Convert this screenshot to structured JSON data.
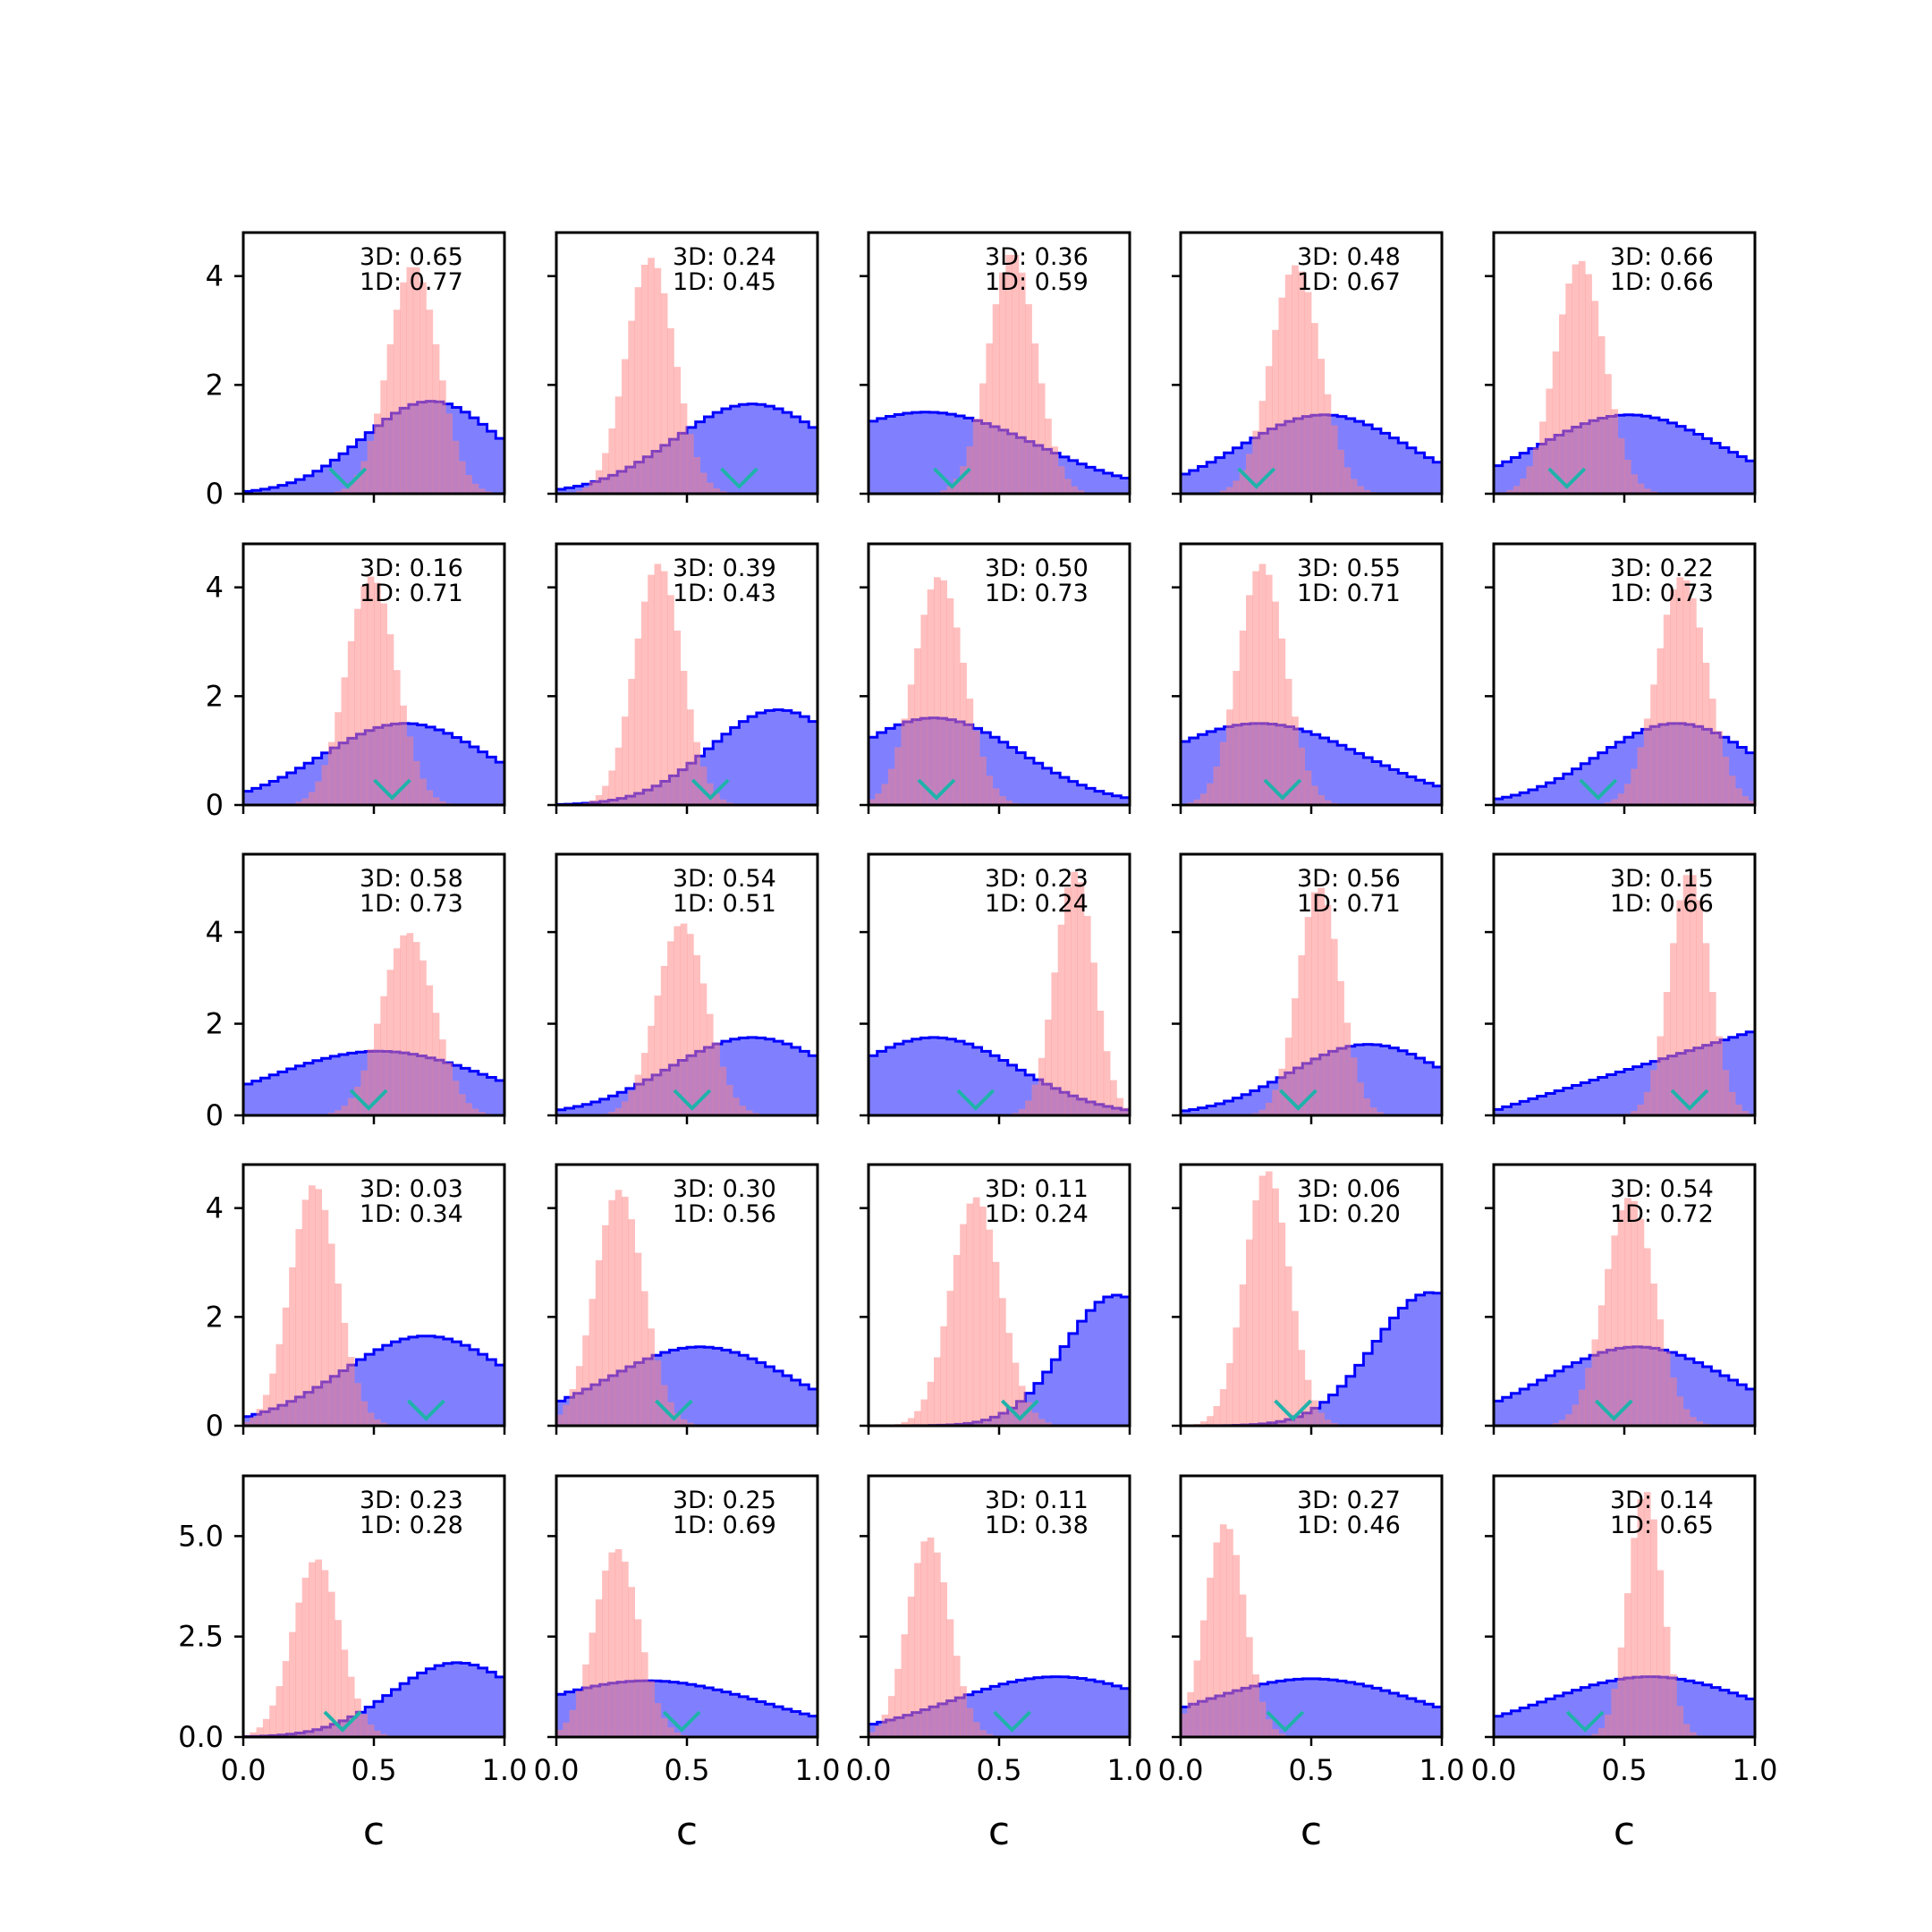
{
  "chart_data": {
    "type": "histogram-grid",
    "rows": 5,
    "cols": 5,
    "xlim": [
      0,
      1
    ],
    "x_ticks": [
      "0.0",
      "0.5",
      "1.0"
    ],
    "xlabel": "c",
    "row_ylim": [
      [
        0,
        4.8
      ],
      [
        0,
        4.8
      ],
      [
        0,
        5.7
      ],
      [
        0,
        4.8
      ],
      [
        0,
        6.5
      ]
    ],
    "row_y_ticks": [
      [
        {
          "v": 0,
          "label": "0"
        },
        {
          "v": 2,
          "label": "2"
        },
        {
          "v": 4,
          "label": "4"
        }
      ],
      [
        {
          "v": 0,
          "label": "0"
        },
        {
          "v": 2,
          "label": "2"
        },
        {
          "v": 4,
          "label": "4"
        }
      ],
      [
        {
          "v": 0,
          "label": "0"
        },
        {
          "v": 2,
          "label": "2"
        },
        {
          "v": 4,
          "label": "4"
        }
      ],
      [
        {
          "v": 0,
          "label": "0"
        },
        {
          "v": 2,
          "label": "2"
        },
        {
          "v": 4,
          "label": "4"
        }
      ],
      [
        {
          "v": 0,
          "label": "0.0"
        },
        {
          "v": 2.5,
          "label": "2.5"
        },
        {
          "v": 5,
          "label": "5.0"
        }
      ]
    ],
    "colors": {
      "broad": "#0000ff",
      "broad_fill": "#8080ff",
      "narrow": "#ff8080",
      "marker": "#20b2aa"
    },
    "panels": [
      {
        "a3d": "3D: 0.65",
        "a1d": "1D: 0.77",
        "marker": 0.4,
        "red": {
          "mu": 0.65,
          "sigma": 0.095
        },
        "blue": {
          "shape": "gauss",
          "mu": 0.72,
          "sigma": 0.26,
          "peak": 1.7
        }
      },
      {
        "a3d": "3D: 0.24",
        "a1d": "1D: 0.45",
        "marker": 0.7,
        "red": {
          "mu": 0.36,
          "sigma": 0.092
        },
        "blue": {
          "shape": "gauss",
          "mu": 0.75,
          "sigma": 0.3,
          "peak": 1.65
        }
      },
      {
        "a3d": "3D: 0.36",
        "a1d": "1D: 0.59",
        "marker": 0.32,
        "red": {
          "mu": 0.55,
          "sigma": 0.09
        },
        "blue": {
          "shape": "gauss",
          "mu": 0.22,
          "sigma": 0.42,
          "peak": 1.5
        }
      },
      {
        "a3d": "3D: 0.48",
        "a1d": "1D: 0.67",
        "marker": 0.29,
        "red": {
          "mu": 0.44,
          "sigma": 0.095
        },
        "blue": {
          "shape": "gauss",
          "mu": 0.55,
          "sigma": 0.32,
          "peak": 1.45
        }
      },
      {
        "a3d": "3D: 0.66",
        "a1d": "1D: 0.66",
        "marker": 0.28,
        "red": {
          "mu": 0.33,
          "sigma": 0.093
        },
        "blue": {
          "shape": "gauss",
          "mu": 0.52,
          "sigma": 0.35,
          "peak": 1.45
        }
      },
      {
        "a3d": "3D: 0.16",
        "a1d": "1D: 0.71",
        "marker": 0.57,
        "red": {
          "mu": 0.49,
          "sigma": 0.095
        },
        "blue": {
          "shape": "gauss",
          "mu": 0.62,
          "sigma": 0.32,
          "peak": 1.5
        }
      },
      {
        "a3d": "3D: 0.39",
        "a1d": "1D: 0.43",
        "marker": 0.59,
        "red": {
          "mu": 0.39,
          "sigma": 0.09
        },
        "blue": {
          "shape": "gauss",
          "mu": 0.85,
          "sigma": 0.26,
          "peak": 1.75
        }
      },
      {
        "a3d": "3D: 0.50",
        "a1d": "1D: 0.73",
        "marker": 0.26,
        "red": {
          "mu": 0.27,
          "sigma": 0.095
        },
        "blue": {
          "shape": "gauss",
          "mu": 0.25,
          "sigma": 0.33,
          "peak": 1.6
        }
      },
      {
        "a3d": "3D: 0.55",
        "a1d": "1D: 0.71",
        "marker": 0.39,
        "red": {
          "mu": 0.31,
          "sigma": 0.09
        },
        "blue": {
          "shape": "gauss",
          "mu": 0.3,
          "sigma": 0.4,
          "peak": 1.5
        }
      },
      {
        "a3d": "3D: 0.22",
        "a1d": "1D: 0.73",
        "marker": 0.4,
        "red": {
          "mu": 0.72,
          "sigma": 0.095
        },
        "blue": {
          "shape": "gauss",
          "mu": 0.7,
          "sigma": 0.3,
          "peak": 1.5
        }
      },
      {
        "a3d": "3D: 0.58",
        "a1d": "1D: 0.73",
        "marker": 0.48,
        "red": {
          "mu": 0.63,
          "sigma": 0.1
        },
        "blue": {
          "shape": "gauss",
          "mu": 0.52,
          "sigma": 0.42,
          "peak": 1.4
        }
      },
      {
        "a3d": "3D: 0.54",
        "a1d": "1D: 0.51",
        "marker": 0.52,
        "red": {
          "mu": 0.48,
          "sigma": 0.095
        },
        "blue": {
          "shape": "gauss",
          "mu": 0.75,
          "sigma": 0.32,
          "peak": 1.7
        }
      },
      {
        "a3d": "3D: 0.23",
        "a1d": "1D: 0.24",
        "marker": 0.41,
        "red": {
          "mu": 0.79,
          "sigma": 0.075
        },
        "blue": {
          "shape": "gauss",
          "mu": 0.25,
          "sigma": 0.32,
          "peak": 1.7
        }
      },
      {
        "a3d": "3D: 0.56",
        "a1d": "1D: 0.71",
        "marker": 0.45,
        "red": {
          "mu": 0.53,
          "sigma": 0.08
        },
        "blue": {
          "shape": "gauss",
          "mu": 0.72,
          "sigma": 0.3,
          "peak": 1.55
        }
      },
      {
        "a3d": "3D: 0.15",
        "a1d": "1D: 0.66",
        "marker": 0.75,
        "red": {
          "mu": 0.75,
          "sigma": 0.075
        },
        "blue": {
          "shape": "linear",
          "start": 0.1,
          "end": 1.85
        }
      },
      {
        "a3d": "3D: 0.03",
        "a1d": "1D: 0.34",
        "marker": 0.7,
        "red": {
          "mu": 0.27,
          "sigma": 0.09
        },
        "blue": {
          "shape": "gauss",
          "mu": 0.7,
          "sigma": 0.32,
          "peak": 1.65
        }
      },
      {
        "a3d": "3D: 0.30",
        "a1d": "1D: 0.56",
        "marker": 0.45,
        "red": {
          "mu": 0.24,
          "sigma": 0.092
        },
        "blue": {
          "shape": "gauss",
          "mu": 0.55,
          "sigma": 0.35,
          "peak": 1.45
        }
      },
      {
        "a3d": "3D: 0.11",
        "a1d": "1D: 0.24",
        "marker": 0.58,
        "red": {
          "mu": 0.41,
          "sigma": 0.095
        },
        "blue": {
          "shape": "gauss",
          "mu": 0.95,
          "sigma": 0.2,
          "peak": 2.4
        }
      },
      {
        "a3d": "3D: 0.06",
        "a1d": "1D: 0.20",
        "marker": 0.43,
        "red": {
          "mu": 0.33,
          "sigma": 0.085
        },
        "blue": {
          "shape": "gauss",
          "mu": 0.96,
          "sigma": 0.22,
          "peak": 2.45
        }
      },
      {
        "a3d": "3D: 0.54",
        "a1d": "1D: 0.72",
        "marker": 0.46,
        "red": {
          "mu": 0.52,
          "sigma": 0.095
        },
        "blue": {
          "shape": "gauss",
          "mu": 0.55,
          "sigma": 0.35,
          "peak": 1.45
        }
      },
      {
        "a3d": "3D: 0.23",
        "a1d": "1D: 0.28",
        "marker": 0.38,
        "red": {
          "mu": 0.28,
          "sigma": 0.09
        },
        "blue": {
          "shape": "gauss",
          "mu": 0.82,
          "sigma": 0.25,
          "peak": 1.85
        }
      },
      {
        "a3d": "3D: 0.25",
        "a1d": "1D: 0.69",
        "marker": 0.48,
        "red": {
          "mu": 0.23,
          "sigma": 0.085
        },
        "blue": {
          "shape": "gauss",
          "mu": 0.35,
          "sigma": 0.45,
          "peak": 1.4
        }
      },
      {
        "a3d": "3D: 0.11",
        "a1d": "1D: 0.38",
        "marker": 0.55,
        "red": {
          "mu": 0.23,
          "sigma": 0.08
        },
        "blue": {
          "shape": "gauss",
          "mu": 0.72,
          "sigma": 0.4,
          "peak": 1.5
        }
      },
      {
        "a3d": "3D: 0.27",
        "a1d": "1D: 0.46",
        "marker": 0.4,
        "red": {
          "mu": 0.17,
          "sigma": 0.075
        },
        "blue": {
          "shape": "gauss",
          "mu": 0.5,
          "sigma": 0.42,
          "peak": 1.45
        }
      },
      {
        "a3d": "3D: 0.14",
        "a1d": "1D: 0.65",
        "marker": 0.35,
        "red": {
          "mu": 0.58,
          "sigma": 0.065
        },
        "blue": {
          "shape": "gauss",
          "mu": 0.6,
          "sigma": 0.4,
          "peak": 1.5
        }
      }
    ]
  }
}
